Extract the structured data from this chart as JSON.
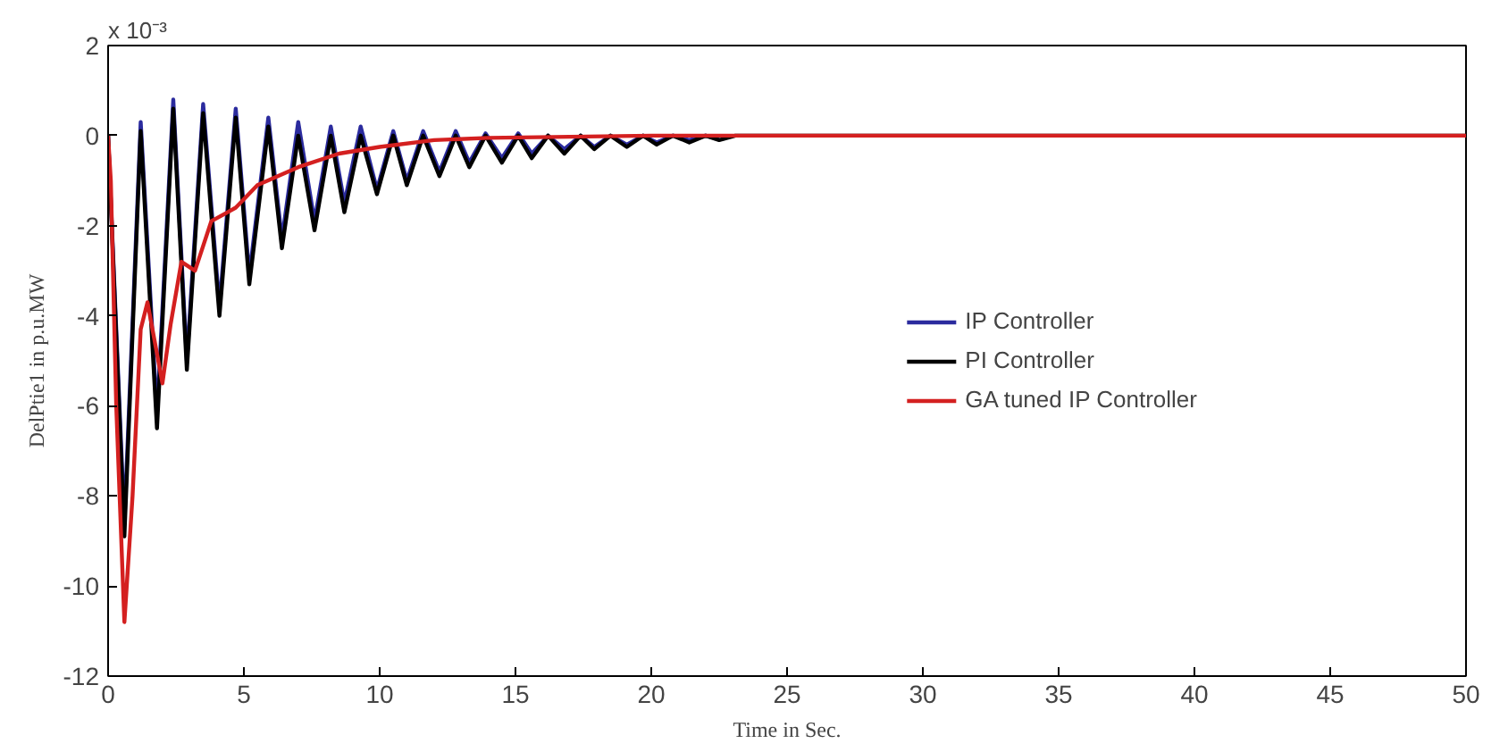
{
  "chart_data": {
    "type": "line",
    "xlabel": "Time in Sec.",
    "ylabel": "DelPtie1 in p.u.MW",
    "annotations": [
      "x 10⁻³"
    ],
    "xlim": [
      0,
      50
    ],
    "ylim": [
      -12,
      2
    ],
    "xticks": [
      0,
      5,
      10,
      15,
      20,
      25,
      30,
      35,
      40,
      45,
      50
    ],
    "yticks": [
      -12,
      -10,
      -8,
      -6,
      -4,
      -2,
      0,
      2
    ],
    "grid": false,
    "legend": "right",
    "line_style": "solid",
    "marker": "none",
    "series": [
      {
        "name": "IP Controller",
        "color": "#2b2b9e",
        "x": [
          0,
          0.6,
          1.2,
          1.8,
          2.4,
          2.9,
          3.5,
          4.1,
          4.7,
          5.2,
          5.9,
          6.4,
          7.0,
          7.6,
          8.2,
          8.7,
          9.3,
          9.9,
          10.5,
          11.0,
          11.6,
          12.2,
          12.8,
          13.3,
          13.9,
          14.5,
          15.1,
          15.6,
          16.2,
          16.8,
          17.4,
          17.9,
          18.5,
          19.1,
          19.7,
          20.2,
          20.8,
          21.4,
          22.0,
          22.5
        ],
        "values": [
          0,
          -8.6,
          0.3,
          -6.2,
          0.8,
          -5.0,
          0.7,
          -3.8,
          0.6,
          -3.1,
          0.4,
          -2.3,
          0.3,
          -1.9,
          0.2,
          -1.5,
          0.2,
          -1.2,
          0.1,
          -1.0,
          0.1,
          -0.8,
          0.1,
          -0.6,
          0.05,
          -0.5,
          0.05,
          -0.4,
          0,
          -0.3,
          0,
          -0.25,
          0,
          -0.2,
          0,
          -0.15,
          0,
          -0.1,
          0,
          -0.08
        ]
      },
      {
        "name": "PI Controller",
        "color": "#000000",
        "x": [
          0,
          0.6,
          1.2,
          1.8,
          2.4,
          2.9,
          3.5,
          4.1,
          4.7,
          5.2,
          5.9,
          6.4,
          7.0,
          7.6,
          8.2,
          8.7,
          9.3,
          9.9,
          10.5,
          11.0,
          11.6,
          12.2,
          12.8,
          13.3,
          13.9,
          14.5,
          15.1,
          15.6,
          16.2,
          16.8,
          17.4,
          17.9,
          18.5,
          19.1,
          19.7,
          20.2,
          20.8,
          21.4,
          22.0,
          22.5,
          23.1,
          25,
          30,
          50
        ],
        "values": [
          0,
          -8.9,
          0.1,
          -6.5,
          0.6,
          -5.2,
          0.5,
          -4.0,
          0.4,
          -3.3,
          0.2,
          -2.5,
          0.0,
          -2.1,
          0.0,
          -1.7,
          0.0,
          -1.3,
          0,
          -1.1,
          0,
          -0.9,
          0,
          -0.7,
          0,
          -0.6,
          0,
          -0.5,
          0,
          -0.4,
          0,
          -0.3,
          0,
          -0.25,
          0,
          -0.2,
          0,
          -0.15,
          0,
          -0.1,
          0,
          0,
          0,
          0
        ]
      },
      {
        "name": "GA tuned IP Controller",
        "color": "#d42020",
        "x": [
          0,
          0.1,
          0.3,
          0.6,
          0.9,
          1.2,
          1.45,
          2.0,
          2.3,
          2.7,
          3.2,
          3.8,
          4.7,
          5.5,
          7,
          8.5,
          10,
          12,
          14,
          20,
          50
        ],
        "values": [
          0,
          -1,
          -6,
          -10.8,
          -8,
          -4.3,
          -3.7,
          -5.5,
          -4.2,
          -2.8,
          -3.0,
          -1.9,
          -1.6,
          -1.1,
          -0.7,
          -0.4,
          -0.25,
          -0.1,
          -0.05,
          0,
          0
        ]
      }
    ]
  }
}
